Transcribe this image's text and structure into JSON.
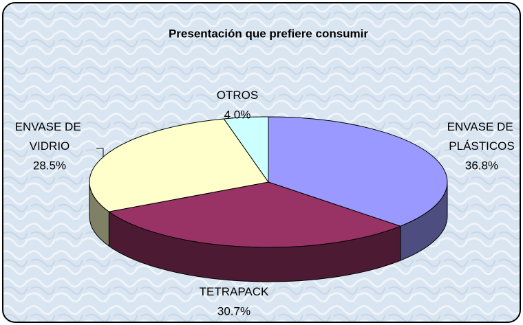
{
  "chart_data": {
    "type": "pie",
    "title": "Presentación que prefiere consumir",
    "categories": [
      "ENVASE DE PLÁSTICOS",
      "TETRAPACK",
      "ENVASE DE VIDRIO",
      "OTROS"
    ],
    "values": [
      36.8,
      30.7,
      28.5,
      4.0
    ],
    "value_labels": [
      "36.8%",
      "30.7%",
      "28.5%",
      "4.0%"
    ],
    "colors": [
      "#9999ff",
      "#993366",
      "#ffffcc",
      "#ccffff"
    ]
  }
}
